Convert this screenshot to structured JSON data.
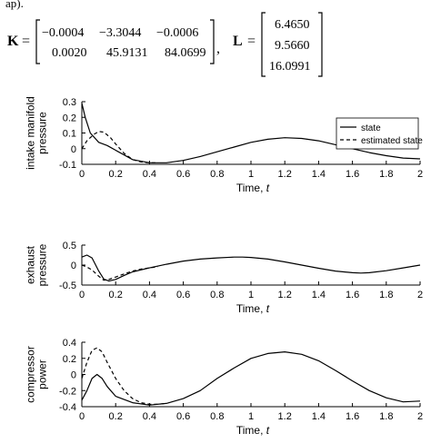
{
  "top_fragment": "ap).",
  "equation": {
    "K_label": "K",
    "L_label": "L",
    "equals": "=",
    "separator": ",",
    "K": [
      [
        "−0.0004",
        "−3.3044",
        "−0.0006"
      ],
      [
        "0.0020",
        "45.9131",
        "84.0699"
      ]
    ],
    "L": [
      "6.4650",
      "9.5660",
      "16.0991"
    ]
  },
  "chart_data": [
    {
      "type": "line",
      "ylabel": "intake manifold pressure",
      "xlabel": "Time, t",
      "xlim": [
        0,
        2
      ],
      "ylim": [
        -0.1,
        0.3
      ],
      "xticks": [
        "0",
        "0.2",
        "0.4",
        "0.6",
        "0.8",
        "1",
        "1.2",
        "1.4",
        "1.6",
        "1.8",
        "2"
      ],
      "yticks": [
        "0.3",
        "0.2",
        "0.1",
        "0",
        "-0.1"
      ],
      "legend": {
        "position": "top-right",
        "entries": [
          "state",
          "estimated state"
        ]
      },
      "series": [
        {
          "name": "state",
          "style": "solid",
          "x": [
            0,
            0.02,
            0.05,
            0.1,
            0.15,
            0.2,
            0.3,
            0.4,
            0.5,
            0.6,
            0.7,
            0.8,
            0.9,
            1.0,
            1.1,
            1.2,
            1.3,
            1.4,
            1.5,
            1.6,
            1.7,
            1.8,
            1.9,
            2.0
          ],
          "y": [
            0.29,
            0.2,
            0.1,
            0.04,
            0.02,
            -0.01,
            -0.07,
            -0.09,
            -0.09,
            -0.075,
            -0.05,
            -0.02,
            0.01,
            0.04,
            0.06,
            0.07,
            0.065,
            0.05,
            0.025,
            0.0,
            -0.025,
            -0.045,
            -0.06,
            -0.065
          ]
        },
        {
          "name": "estimated state",
          "style": "dashed",
          "x": [
            0,
            0.03,
            0.07,
            0.1,
            0.13,
            0.17,
            0.2,
            0.25,
            0.3,
            0.35,
            0.4,
            0.45
          ],
          "y": [
            0.0,
            0.05,
            0.09,
            0.11,
            0.105,
            0.07,
            0.03,
            -0.03,
            -0.07,
            -0.085,
            -0.09,
            -0.09
          ]
        }
      ]
    },
    {
      "type": "line",
      "ylabel": "exhaust pressure",
      "xlabel": "Time, t",
      "xlim": [
        0,
        2
      ],
      "ylim": [
        -0.5,
        0.5
      ],
      "xticks": [
        "0",
        "0.2",
        "0.4",
        "0.6",
        "0.8",
        "1",
        "1.2",
        "1.4",
        "1.6",
        "1.8",
        "2"
      ],
      "yticks": [
        "0.5",
        "0",
        "-0.5"
      ],
      "series": [
        {
          "name": "state",
          "style": "solid",
          "x": [
            0,
            0.03,
            0.06,
            0.1,
            0.13,
            0.16,
            0.2,
            0.25,
            0.3,
            0.4,
            0.5,
            0.6,
            0.7,
            0.8,
            0.9,
            0.95,
            1.0,
            1.1,
            1.2,
            1.3,
            1.4,
            1.5,
            1.6,
            1.65,
            1.7,
            1.8,
            1.9,
            2.0
          ],
          "y": [
            0.2,
            0.25,
            0.18,
            -0.15,
            -0.35,
            -0.4,
            -0.36,
            -0.26,
            -0.17,
            -0.07,
            0.02,
            0.1,
            0.15,
            0.18,
            0.2,
            0.2,
            0.19,
            0.15,
            0.08,
            0.0,
            -0.08,
            -0.15,
            -0.19,
            -0.2,
            -0.19,
            -0.14,
            -0.07,
            0.0
          ]
        },
        {
          "name": "estimated state",
          "style": "dashed",
          "x": [
            0,
            0.03,
            0.06,
            0.1,
            0.13,
            0.16,
            0.2,
            0.25,
            0.3,
            0.35,
            0.4,
            0.45
          ],
          "y": [
            0.0,
            -0.05,
            -0.12,
            -0.28,
            -0.38,
            -0.36,
            -0.3,
            -0.22,
            -0.15,
            -0.1,
            -0.07,
            -0.04
          ]
        }
      ]
    },
    {
      "type": "line",
      "ylabel": "compressor power",
      "xlabel": "Time, t",
      "xlim": [
        0,
        2
      ],
      "ylim": [
        -0.4,
        0.4
      ],
      "xticks": [
        "0",
        "0.2",
        "0.4",
        "0.6",
        "0.8",
        "1",
        "1.2",
        "1.4",
        "1.6",
        "1.8",
        "2"
      ],
      "yticks": [
        "0.4",
        "0.2",
        "0",
        "-0.2",
        "-0.4"
      ],
      "series": [
        {
          "name": "state",
          "style": "solid",
          "x": [
            0,
            0.03,
            0.06,
            0.09,
            0.12,
            0.15,
            0.2,
            0.3,
            0.4,
            0.5,
            0.6,
            0.7,
            0.8,
            0.9,
            1.0,
            1.1,
            1.2,
            1.3,
            1.4,
            1.5,
            1.6,
            1.7,
            1.8,
            1.9,
            2.0
          ],
          "y": [
            -0.32,
            -0.2,
            -0.05,
            0.0,
            -0.05,
            -0.15,
            -0.27,
            -0.35,
            -0.38,
            -0.36,
            -0.3,
            -0.2,
            -0.05,
            0.08,
            0.2,
            0.26,
            0.28,
            0.25,
            0.17,
            0.05,
            -0.08,
            -0.2,
            -0.29,
            -0.34,
            -0.33
          ]
        },
        {
          "name": "estimated state",
          "style": "dashed",
          "x": [
            0,
            0.03,
            0.06,
            0.09,
            0.12,
            0.15,
            0.2,
            0.25,
            0.3,
            0.35,
            0.4,
            0.45,
            0.5
          ],
          "y": [
            -0.05,
            0.15,
            0.3,
            0.33,
            0.28,
            0.15,
            -0.05,
            -0.2,
            -0.3,
            -0.35,
            -0.37,
            -0.37,
            -0.36
          ]
        }
      ]
    }
  ]
}
